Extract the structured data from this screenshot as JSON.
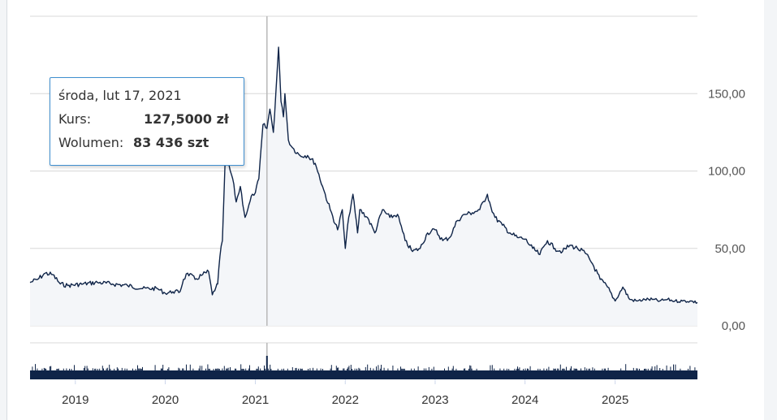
{
  "tooltip": {
    "date": "środa, lut 17, 2021",
    "price_label": "Kurs:",
    "price_value": "127,5000 zł",
    "volume_label": "Wolumen:",
    "volume_value": "83 436 szt"
  },
  "colors": {
    "line": "#0f2448",
    "area": "#f4f6f9",
    "volume": "#0f2448",
    "grid": "#d8d8d8",
    "tooltip_border": "#3f8fd0"
  },
  "chart_data": {
    "type": "line",
    "title": "",
    "xlabel": "",
    "ylabel": "",
    "x_ticks": [
      "2019",
      "2020",
      "2021",
      "2022",
      "2023",
      "2024",
      "2025"
    ],
    "y_ticks": [
      "0,00",
      "50,00",
      "100,00",
      "150,00"
    ],
    "ylim": [
      0,
      200
    ],
    "xlim": [
      "2018-07-01",
      "2025-12-01"
    ],
    "grid": true,
    "legend": "none",
    "crosshair_date": "2021-02-17",
    "series": [
      {
        "x": [
          "2018-07-01",
          "2018-08-01",
          "2018-09-01",
          "2018-10-01",
          "2018-11-01",
          "2018-12-01",
          "2019-02-01",
          "2019-04-01",
          "2019-06-01",
          "2019-08-01",
          "2019-10-01",
          "2019-12-01",
          "2020-01-01",
          "2020-02-01",
          "2020-03-01",
          "2020-03-15",
          "2020-04-01",
          "2020-05-01",
          "2020-06-01",
          "2020-06-25",
          "2020-07-10",
          "2020-07-25",
          "2020-08-01",
          "2020-08-10",
          "2020-08-20",
          "2020-09-01",
          "2020-10-01",
          "2020-10-15",
          "2020-11-01",
          "2020-11-20",
          "2020-12-01",
          "2020-12-20",
          "2021-01-01",
          "2021-01-15",
          "2021-02-01",
          "2021-02-17",
          "2021-03-01",
          "2021-03-15",
          "2021-03-25",
          "2021-04-05",
          "2021-04-15",
          "2021-04-25",
          "2021-05-01",
          "2021-05-15",
          "2021-06-01",
          "2021-07-01",
          "2021-08-01",
          "2021-09-01",
          "2021-10-01",
          "2021-11-01",
          "2021-12-01",
          "2021-12-20",
          "2022-01-01",
          "2022-01-15",
          "2022-02-01",
          "2022-02-20",
          "2022-03-01",
          "2022-04-01",
          "2022-05-01",
          "2022-06-01",
          "2022-07-01",
          "2022-08-01",
          "2022-09-01",
          "2022-10-01",
          "2022-11-01",
          "2022-12-01",
          "2023-01-01",
          "2023-02-01",
          "2023-03-01",
          "2023-04-01",
          "2023-05-01",
          "2023-06-01",
          "2023-07-01",
          "2023-08-01",
          "2023-08-15",
          "2023-09-01",
          "2023-10-01",
          "2023-11-01",
          "2023-12-01",
          "2024-01-01",
          "2024-02-01",
          "2024-03-01",
          "2024-04-01",
          "2024-05-01",
          "2024-06-01",
          "2024-07-01",
          "2024-08-01",
          "2024-09-01",
          "2024-10-01",
          "2024-11-01",
          "2024-12-01",
          "2025-01-01",
          "2025-02-01",
          "2025-03-01",
          "2025-04-01",
          "2025-05-01",
          "2025-06-01",
          "2025-07-01",
          "2025-08-01",
          "2025-09-01",
          "2025-10-01",
          "2025-11-01",
          "2025-12-01"
        ],
        "y": [
          28,
          30,
          34,
          33,
          27,
          26,
          27,
          28,
          27,
          26,
          24,
          24,
          21,
          22,
          22,
          30,
          34,
          30,
          33,
          35,
          20,
          25,
          27,
          45,
          55,
          110,
          95,
          80,
          90,
          70,
          75,
          85,
          86,
          95,
          130,
          127.5,
          140,
          125,
          150,
          180,
          145,
          135,
          150,
          120,
          115,
          110,
          110,
          105,
          90,
          75,
          62,
          75,
          50,
          70,
          85,
          60,
          75,
          70,
          60,
          75,
          70,
          72,
          55,
          48,
          50,
          60,
          62,
          55,
          57,
          68,
          72,
          73,
          75,
          85,
          77,
          70,
          65,
          60,
          57,
          56,
          50,
          46,
          55,
          50,
          48,
          52,
          50,
          47,
          40,
          30,
          25,
          16,
          25,
          17,
          16,
          17,
          17,
          16,
          17,
          16,
          16,
          16,
          15
        ]
      }
    ],
    "volume_note": "volume bars below the price chart"
  }
}
